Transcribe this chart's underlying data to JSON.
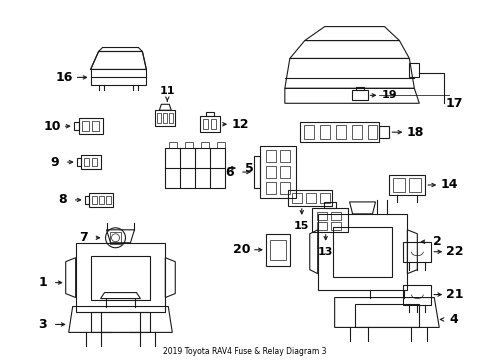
{
  "title": "2019 Toyota RAV4 Fuse & Relay Diagram 3",
  "background_color": "#ffffff",
  "line_color": "#1a1a1a",
  "text_color": "#000000",
  "fig_width": 4.9,
  "fig_height": 3.6,
  "dpi": 100
}
